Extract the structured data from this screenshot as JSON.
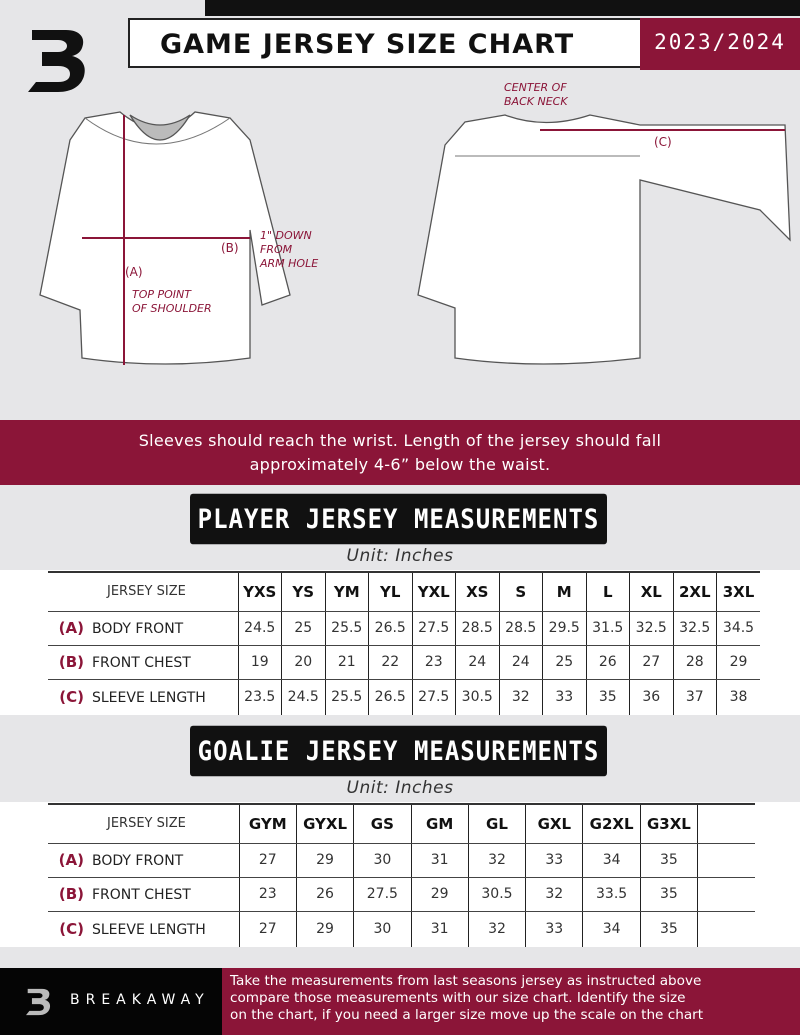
{
  "header": {
    "title": "GAME JERSEY SIZE CHART",
    "season": "2023/2024",
    "logo": "B"
  },
  "diagram": {
    "label_a": "(A)",
    "label_b": "(B)",
    "label_c": "(C)",
    "note_shoulder": [
      "TOP POINT",
      "OF SHOULDER"
    ],
    "note_armhole": [
      "1\" DOWN",
      "FROM",
      "ARM HOLE"
    ],
    "note_neck": [
      "CENTER OF",
      "BACK NECK"
    ]
  },
  "instructions": [
    "Sleeves should reach the wrist. Length of the jersey should fall",
    "approximately 4-6” below the waist."
  ],
  "player": {
    "heading": "PLAYER JERSEY MEASUREMENTS",
    "unit": "Unit: Inches",
    "size_label": "JERSEY SIZE",
    "sizes": [
      "YXS",
      "YS",
      "YM",
      "YL",
      "YXL",
      "XS",
      "S",
      "M",
      "L",
      "XL",
      "2XL",
      "3XL"
    ],
    "rows": [
      {
        "key": "(A)",
        "label": "BODY FRONT",
        "values": [
          "24.5",
          "25",
          "25.5",
          "26.5",
          "27.5",
          "28.5",
          "28.5",
          "29.5",
          "31.5",
          "32.5",
          "32.5",
          "34.5"
        ]
      },
      {
        "key": "(B)",
        "label": "FRONT CHEST",
        "values": [
          "19",
          "20",
          "21",
          "22",
          "23",
          "24",
          "24",
          "25",
          "26",
          "27",
          "28",
          "29"
        ]
      },
      {
        "key": "(C)",
        "label": "SLEEVE LENGTH",
        "values": [
          "23.5",
          "24.5",
          "25.5",
          "26.5",
          "27.5",
          "30.5",
          "32",
          "33",
          "35",
          "36",
          "37",
          "38"
        ]
      }
    ]
  },
  "goalie": {
    "heading": "GOALIE JERSEY MEASUREMENTS",
    "unit": "Unit: Inches",
    "size_label": "JERSEY SIZE",
    "sizes": [
      "GYM",
      "GYXL",
      "GS",
      "GM",
      "GL",
      "GXL",
      "G2XL",
      "G3XL",
      ""
    ],
    "rows": [
      {
        "key": "(A)",
        "label": "BODY FRONT",
        "values": [
          "27",
          "29",
          "30",
          "31",
          "32",
          "33",
          "34",
          "35",
          ""
        ]
      },
      {
        "key": "(B)",
        "label": "FRONT CHEST",
        "values": [
          "23",
          "26",
          "27.5",
          "29",
          "30.5",
          "32",
          "33.5",
          "35",
          ""
        ]
      },
      {
        "key": "(C)",
        "label": "SLEEVE LENGTH",
        "values": [
          "27",
          "29",
          "30",
          "31",
          "32",
          "33",
          "34",
          "35",
          ""
        ]
      }
    ]
  },
  "footer": {
    "brand": "BREAKAWAY",
    "text": [
      "Take the measurements from last seasons jersey as instructed above",
      "compare those measurements  with our size chart. Identify the size",
      "on the chart, if you need a larger size move up the scale on the chart"
    ]
  },
  "colors": {
    "accent": "#8b1538",
    "background": "#e6e6e8",
    "dark": "#111111"
  }
}
